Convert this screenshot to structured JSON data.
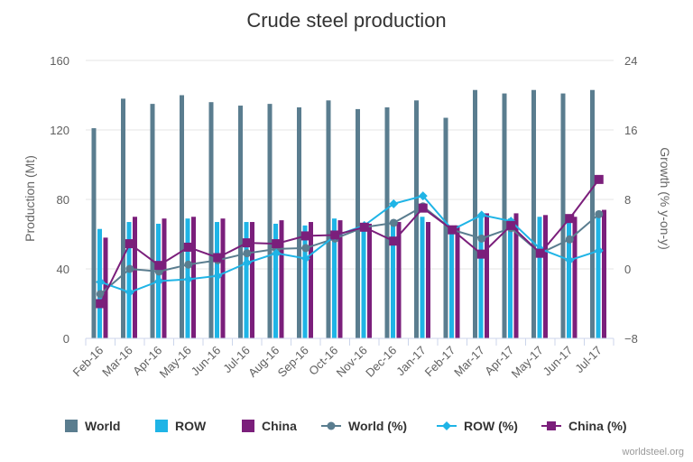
{
  "chart_data": {
    "type": "bar",
    "title": "Crude steel production",
    "ylabel": "Production (Mt)",
    "y2label": "Growth (% y-on-y)",
    "ylim": [
      0,
      160
    ],
    "y2lim": [
      -8,
      24
    ],
    "yticks": [
      "0",
      "40",
      "80",
      "120",
      "160"
    ],
    "y2ticks": [
      "−8",
      "0",
      "8",
      "16",
      "24"
    ],
    "categories": [
      "Feb-16",
      "Mar-16",
      "Apr-16",
      "May-16",
      "Jun-16",
      "Jul-16",
      "Aug-16",
      "Sep-16",
      "Oct-16",
      "Nov-16",
      "Dec-16",
      "Jan-17",
      "Feb-17",
      "Mar-17",
      "Apr-17",
      "May-17",
      "Jun-17",
      "Jul-17"
    ],
    "bar_series": [
      {
        "name": "World",
        "color": "#5a7d8f",
        "values": [
          121,
          138,
          135,
          140,
          136,
          134,
          135,
          133,
          137,
          132,
          133,
          137,
          127,
          143,
          141,
          143,
          141,
          143
        ]
      },
      {
        "name": "ROW",
        "color": "#1fb4e6",
        "values": [
          63,
          67,
          66,
          69,
          67,
          67,
          66,
          65,
          69,
          66,
          65,
          70,
          64,
          71,
          69,
          70,
          70,
          70
        ]
      },
      {
        "name": "China",
        "color": "#7b1f7b",
        "values": [
          58,
          70,
          69,
          70,
          69,
          67,
          68,
          67,
          68,
          66,
          67,
          67,
          65,
          72,
          72,
          71,
          70,
          74
        ]
      }
    ],
    "line_series": [
      {
        "name": "World (%)",
        "color": "#5a7d8f",
        "marker": "circle",
        "values": [
          -2.9,
          0.0,
          -0.3,
          0.5,
          1.0,
          1.8,
          2.3,
          2.4,
          3.5,
          4.8,
          5.3,
          7.2,
          4.5,
          3.5,
          4.7,
          1.8,
          3.4,
          6.3
        ]
      },
      {
        "name": "ROW (%)",
        "color": "#1fb4e6",
        "marker": "diamond",
        "values": [
          -1.5,
          -2.7,
          -1.4,
          -1.2,
          -0.8,
          0.7,
          1.8,
          1.2,
          3.8,
          5.0,
          7.5,
          8.4,
          4.5,
          6.2,
          5.5,
          2.3,
          1.0,
          2.1
        ]
      },
      {
        "name": "China (%)",
        "color": "#7b1f7b",
        "marker": "square",
        "values": [
          -4.0,
          2.9,
          0.4,
          2.5,
          1.3,
          3.0,
          2.9,
          3.8,
          3.9,
          4.8,
          3.2,
          7.0,
          4.5,
          1.7,
          5.0,
          1.8,
          5.8,
          10.3
        ]
      }
    ],
    "legend_position": "bottom",
    "grid": true
  },
  "credit": "worldsteel.org"
}
